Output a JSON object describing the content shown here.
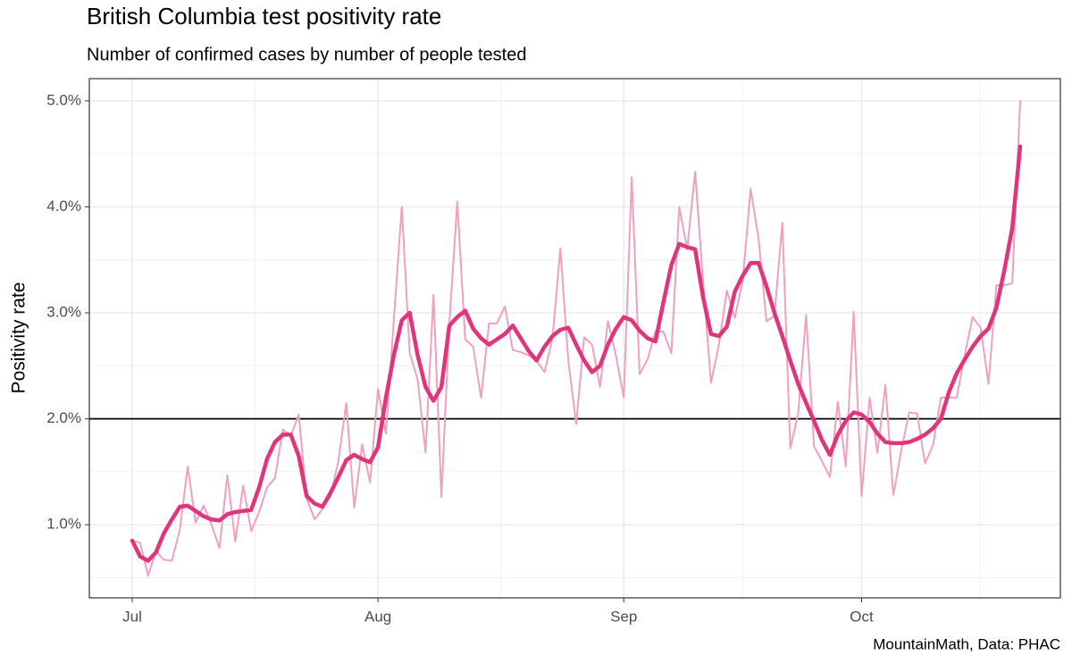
{
  "chart_data": {
    "type": "line",
    "title": "British Columbia test positivity rate",
    "subtitle": "Number of confirmed cases by number of people tested",
    "y_label": "Positivity rate",
    "caption": "MountainMath, Data: PHAC",
    "categories": [
      "Jul",
      null,
      null,
      null,
      null,
      null,
      null,
      null,
      null,
      null,
      null,
      null,
      null,
      null,
      null,
      null,
      null,
      null,
      null,
      null,
      null,
      null,
      null,
      null,
      null,
      null,
      null,
      null,
      null,
      null,
      null,
      "Aug",
      null,
      null,
      null,
      null,
      null,
      null,
      null,
      null,
      null,
      null,
      null,
      null,
      null,
      null,
      null,
      null,
      null,
      null,
      null,
      null,
      null,
      null,
      null,
      null,
      null,
      null,
      null,
      null,
      null,
      null,
      "Sep",
      null,
      null,
      null,
      null,
      null,
      null,
      null,
      null,
      null,
      null,
      null,
      null,
      null,
      null,
      null,
      null,
      null,
      null,
      null,
      null,
      null,
      null,
      null,
      null,
      null,
      null,
      null,
      null,
      null,
      "Oct",
      null,
      null,
      null,
      null,
      null,
      null,
      null,
      null,
      null,
      null,
      null,
      null,
      null,
      null,
      null,
      null,
      null,
      null,
      null,
      null
    ],
    "series": [
      {
        "color": "#f0a0bf",
        "values": [
          0.85,
          0.83,
          0.52,
          0.75,
          0.67,
          0.66,
          0.95,
          1.55,
          1.02,
          1.18,
          1.0,
          0.78,
          1.47,
          0.84,
          1.37,
          0.94,
          1.12,
          1.35,
          1.44,
          1.9,
          1.84,
          2.04,
          1.25,
          1.05,
          1.15,
          1.27,
          1.6,
          2.15,
          1.16,
          1.76,
          1.4,
          2.28,
          1.86,
          2.94,
          4.0,
          2.62,
          2.37,
          1.68,
          3.17,
          1.26,
          2.9,
          4.05,
          2.75,
          2.68,
          2.2,
          2.9,
          2.9,
          3.06,
          2.65,
          2.63,
          2.6,
          2.55,
          2.44,
          2.75,
          3.61,
          2.55,
          1.95,
          2.77,
          2.7,
          2.3,
          2.92,
          2.6,
          2.2,
          4.28,
          2.42,
          2.56,
          2.83,
          2.82,
          2.62,
          4.0,
          3.6,
          4.33,
          3.3,
          2.34,
          2.7,
          3.21,
          2.95,
          3.3,
          4.17,
          3.7,
          2.92,
          2.97,
          3.85,
          1.72,
          2.05,
          2.98,
          1.74,
          1.6,
          1.45,
          2.16,
          1.55,
          3.01,
          1.27,
          2.2,
          1.68,
          2.32,
          1.28,
          1.7,
          2.06,
          2.05,
          1.58,
          1.75,
          2.2,
          2.2,
          2.2,
          2.6,
          2.96,
          2.86,
          2.33,
          3.26,
          3.26,
          3.28,
          5.0
        ]
      },
      {
        "color": "#e0357a",
        "values": [
          0.85,
          0.7,
          0.66,
          0.74,
          0.92,
          1.05,
          1.17,
          1.18,
          1.13,
          1.08,
          1.05,
          1.04,
          1.1,
          1.12,
          1.13,
          1.14,
          1.35,
          1.62,
          1.78,
          1.85,
          1.85,
          1.65,
          1.27,
          1.2,
          1.17,
          1.3,
          1.45,
          1.61,
          1.66,
          1.62,
          1.59,
          1.73,
          2.2,
          2.6,
          2.93,
          3.0,
          2.6,
          2.3,
          2.17,
          2.3,
          2.88,
          2.96,
          3.02,
          2.85,
          2.76,
          2.7,
          2.75,
          2.8,
          2.88,
          2.76,
          2.64,
          2.55,
          2.68,
          2.78,
          2.84,
          2.86,
          2.7,
          2.55,
          2.44,
          2.5,
          2.7,
          2.85,
          2.96,
          2.93,
          2.83,
          2.76,
          2.73,
          3.1,
          3.45,
          3.65,
          3.62,
          3.6,
          3.15,
          2.8,
          2.78,
          2.87,
          3.2,
          3.35,
          3.47,
          3.47,
          3.25,
          3.0,
          2.78,
          2.55,
          2.33,
          2.15,
          1.98,
          1.8,
          1.66,
          1.85,
          1.98,
          2.06,
          2.04,
          1.97,
          1.86,
          1.78,
          1.77,
          1.77,
          1.78,
          1.81,
          1.85,
          1.91,
          2.0,
          2.25,
          2.43,
          2.56,
          2.68,
          2.78,
          2.85,
          3.05,
          3.4,
          3.8,
          4.57
        ]
      }
    ],
    "hline": 2.0,
    "ylim": [
      0.31,
      5.21
    ],
    "yticks": [
      {
        "value": 1.0,
        "label": "1.0%"
      },
      {
        "value": 2.0,
        "label": "2.0%"
      },
      {
        "value": 3.0,
        "label": "3.0%"
      },
      {
        "value": 4.0,
        "label": "4.0%"
      },
      {
        "value": 5.0,
        "label": "5.0%"
      }
    ],
    "grid": true
  }
}
